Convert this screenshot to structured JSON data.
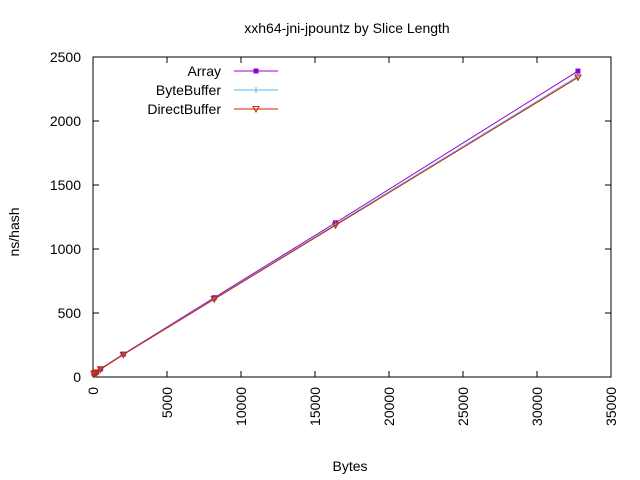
{
  "chart_data": {
    "type": "line",
    "title": "xxh64-jni-jpountz by Slice Length",
    "xlabel": "Bytes",
    "ylabel": "ns/hash",
    "xlim": [
      0,
      35000
    ],
    "ylim": [
      0,
      2500
    ],
    "xticks": [
      0,
      5000,
      10000,
      15000,
      20000,
      25000,
      30000,
      35000
    ],
    "yticks": [
      0,
      500,
      1000,
      1500,
      2000,
      2500
    ],
    "x_tick_rotation": "vertical",
    "grid": false,
    "legend_position": "top-left",
    "x": [
      64,
      128,
      256,
      512,
      2048,
      8192,
      16384,
      32768
    ],
    "series": [
      {
        "name": "Array",
        "color": "#9400d3",
        "marker": "square",
        "values": [
          28,
          30,
          37,
          64,
          179,
          620,
          1205,
          2390
        ]
      },
      {
        "name": "ByteBuffer",
        "color": "#56b4e9",
        "marker": "plus",
        "values": [
          27,
          29,
          36,
          62,
          176,
          612,
          1192,
          2350
        ]
      },
      {
        "name": "DirectBuffer",
        "color": "#cc2200",
        "marker": "triangle-down",
        "values": [
          26,
          28,
          35,
          60,
          174,
          608,
          1185,
          2340
        ]
      }
    ]
  }
}
